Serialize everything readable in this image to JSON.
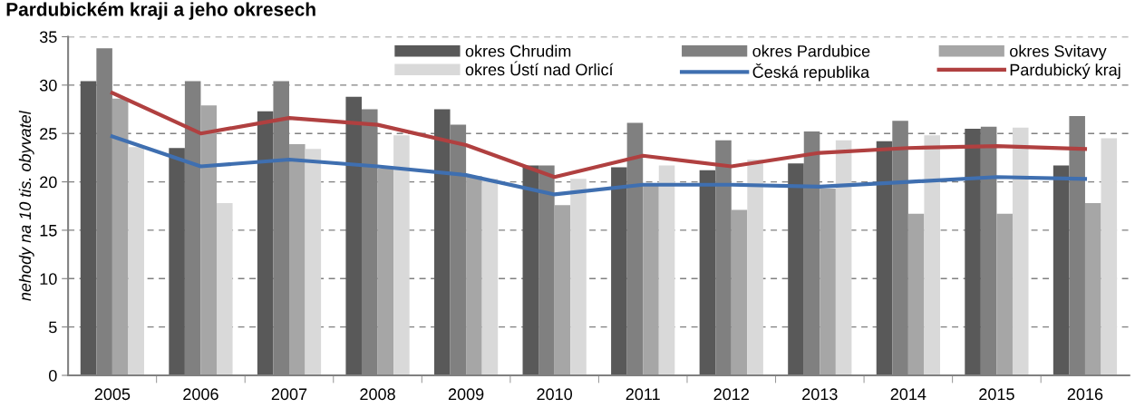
{
  "chart_data": {
    "type": "bar",
    "title": "Pardubickém kraji a jeho okresech",
    "ylabel": "nehody na 10 tis. obyvatel",
    "categories": [
      "2005",
      "2006",
      "2007",
      "2008",
      "2009",
      "2010",
      "2011",
      "2012",
      "2013",
      "2014",
      "2015",
      "2016"
    ],
    "series": [
      {
        "name": "okres Chrudim",
        "color": "#595959",
        "values": [
          30.4,
          23.5,
          27.3,
          28.8,
          27.5,
          21.7,
          21.5,
          21.2,
          21.9,
          24.2,
          25.5,
          21.7
        ]
      },
      {
        "name": "okres Pardubice",
        "color": "#808080",
        "values": [
          33.8,
          30.4,
          30.4,
          27.5,
          25.9,
          21.7,
          26.1,
          24.3,
          25.2,
          26.3,
          25.7,
          26.8
        ]
      },
      {
        "name": "okres Svitavy",
        "color": "#a6a6a6",
        "values": [
          28.6,
          27.9,
          23.9,
          21.4,
          20.6,
          17.6,
          19.7,
          17.1,
          19.3,
          16.7,
          16.7,
          17.8
        ]
      },
      {
        "name": "okres Ústí nad Orlicí",
        "color": "#d9d9d9",
        "values": [
          23.6,
          17.8,
          23.4,
          24.8,
          20.3,
          20.3,
          21.7,
          22.3,
          24.3,
          24.8,
          25.6,
          24.5
        ]
      },
      {
        "name": "Česká republika",
        "type": "line",
        "color": "#3f6fb0",
        "values": [
          24.7,
          21.6,
          22.3,
          21.6,
          20.7,
          18.7,
          19.7,
          19.7,
          19.5,
          20.0,
          20.5,
          20.3
        ]
      },
      {
        "name": "Pardubický kraj",
        "type": "line",
        "color": "#b04040",
        "values": [
          29.2,
          25.0,
          26.6,
          25.9,
          23.8,
          20.5,
          22.7,
          21.6,
          23.0,
          23.5,
          23.7,
          23.4
        ]
      }
    ],
    "ylim": [
      0,
      35
    ],
    "yticks": [
      0,
      5,
      10,
      15,
      20,
      25,
      30,
      35
    ],
    "grid": "y",
    "legend": "top right",
    "marker": "none",
    "line_style": "solid"
  }
}
